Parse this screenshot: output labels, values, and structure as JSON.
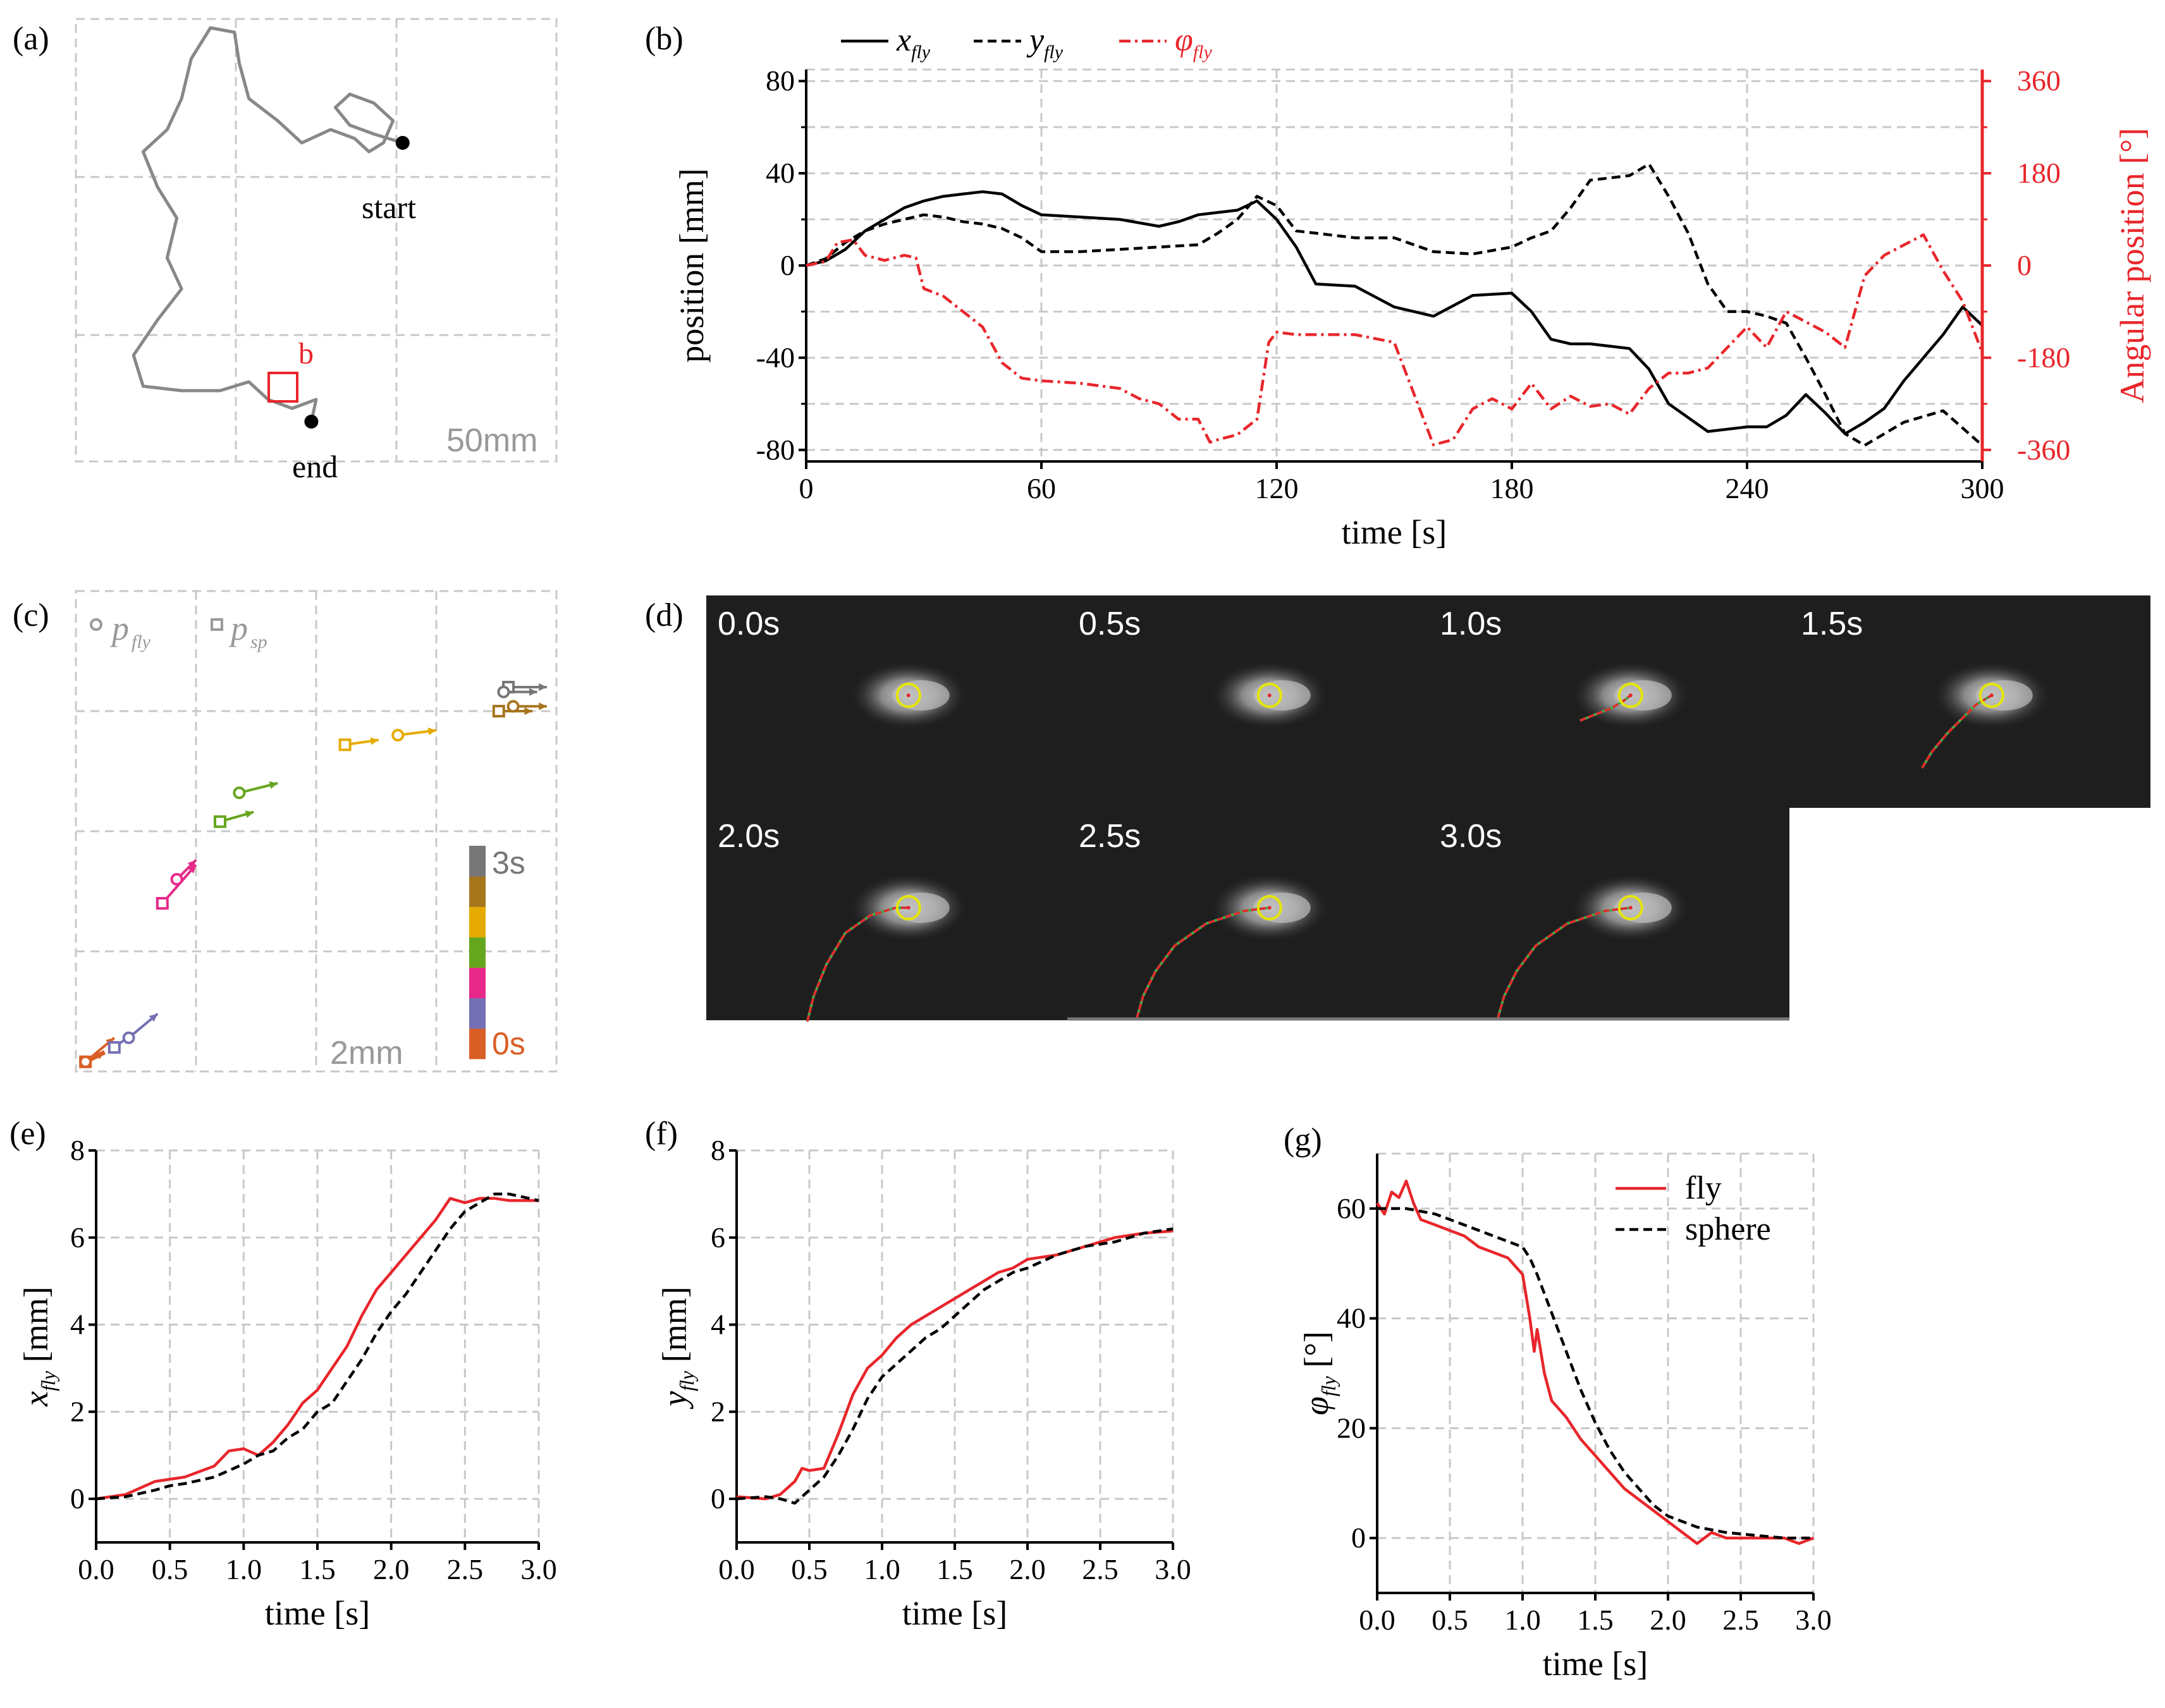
{
  "colors": {
    "black": "#000000",
    "red": "#e8262b",
    "grey": "#888888",
    "grid": "#c8c8c8",
    "yellow": "#e6e600",
    "dark": "#1e1e1e"
  },
  "panel_a": {
    "label": "(a)",
    "start_label": "start",
    "end_label": "end",
    "box_label": "b",
    "scale_label": "50mm",
    "path": [
      [
        0.68,
        0.28
      ],
      [
        0.62,
        0.26
      ],
      [
        0.57,
        0.24
      ],
      [
        0.54,
        0.2
      ],
      [
        0.57,
        0.17
      ],
      [
        0.62,
        0.19
      ],
      [
        0.66,
        0.23
      ],
      [
        0.64,
        0.28
      ],
      [
        0.61,
        0.3
      ],
      [
        0.58,
        0.27
      ],
      [
        0.53,
        0.25
      ],
      [
        0.47,
        0.28
      ],
      [
        0.42,
        0.23
      ],
      [
        0.36,
        0.18
      ],
      [
        0.34,
        0.1
      ],
      [
        0.33,
        0.03
      ],
      [
        0.28,
        0.02
      ],
      [
        0.24,
        0.09
      ],
      [
        0.22,
        0.18
      ],
      [
        0.19,
        0.25
      ],
      [
        0.14,
        0.3
      ],
      [
        0.17,
        0.38
      ],
      [
        0.21,
        0.45
      ],
      [
        0.19,
        0.54
      ],
      [
        0.22,
        0.61
      ],
      [
        0.17,
        0.68
      ],
      [
        0.12,
        0.76
      ],
      [
        0.14,
        0.83
      ],
      [
        0.22,
        0.84
      ],
      [
        0.3,
        0.84
      ],
      [
        0.36,
        0.82
      ],
      [
        0.4,
        0.86
      ],
      [
        0.45,
        0.88
      ],
      [
        0.5,
        0.86
      ],
      [
        0.49,
        0.91
      ]
    ],
    "start_point": [
      0.68,
      0.28
    ],
    "end_point": [
      0.49,
      0.91
    ]
  },
  "panel_b": {
    "label": "(b)",
    "chart_data": {
      "type": "line",
      "xlabel": "time [s]",
      "ylabel": "position [mm]",
      "ylabel_right": "Angular position [°]",
      "xlim": [
        0,
        300
      ],
      "ylim": [
        -85,
        85
      ],
      "ylim_right": [
        -382.5,
        382.5
      ],
      "xticks": [
        0,
        60,
        120,
        180,
        240,
        300
      ],
      "yticks": [
        -80,
        -40,
        0,
        40,
        80
      ],
      "yticks_right": [
        -360,
        -180,
        0,
        180,
        360
      ],
      "series": [
        {
          "name": "x",
          "sub": "fly",
          "style": "solid",
          "color": "#000000",
          "axis": "left",
          "x": [
            0,
            5,
            10,
            15,
            20,
            25,
            30,
            35,
            40,
            45,
            50,
            55,
            60,
            70,
            80,
            90,
            95,
            100,
            105,
            110,
            115,
            120,
            125,
            130,
            140,
            150,
            160,
            170,
            180,
            185,
            190,
            195,
            200,
            210,
            215,
            220,
            230,
            240,
            245,
            250,
            255,
            260,
            265,
            270,
            275,
            280,
            285,
            290,
            295,
            300
          ],
          "y": [
            0,
            2,
            7,
            15,
            20,
            25,
            28,
            30,
            31,
            32,
            31,
            26,
            22,
            21,
            20,
            17,
            19,
            22,
            23,
            24,
            28,
            20,
            8,
            -8,
            -9,
            -18,
            -22,
            -13,
            -12,
            -20,
            -32,
            -34,
            -34,
            -36,
            -45,
            -60,
            -72,
            -70,
            -70,
            -65,
            -56,
            -64,
            -73,
            -68,
            -62,
            -50,
            -40,
            -30,
            -18,
            -26
          ]
        },
        {
          "name": "y",
          "sub": "fly",
          "style": "dashed",
          "color": "#000000",
          "axis": "left",
          "x": [
            0,
            5,
            10,
            15,
            20,
            25,
            30,
            35,
            40,
            45,
            50,
            55,
            60,
            70,
            80,
            90,
            100,
            105,
            110,
            115,
            120,
            125,
            130,
            140,
            150,
            155,
            160,
            170,
            180,
            185,
            190,
            195,
            200,
            210,
            215,
            220,
            225,
            230,
            235,
            240,
            245,
            250,
            255,
            260,
            265,
            270,
            280,
            290,
            300
          ],
          "y": [
            0,
            3,
            10,
            15,
            18,
            20,
            22,
            21,
            19,
            18,
            16,
            12,
            6,
            6,
            7,
            8,
            9,
            14,
            20,
            30,
            26,
            15,
            14,
            12,
            12,
            9,
            6,
            5,
            8,
            12,
            15,
            25,
            37,
            39,
            44,
            30,
            14,
            -8,
            -20,
            -20,
            -22,
            -25,
            -40,
            -56,
            -73,
            -78,
            -68,
            -63,
            -78
          ]
        },
        {
          "name": "φ",
          "sub": "fly",
          "style": "dashdot",
          "color": "#e8262b",
          "axis": "right",
          "x": [
            0,
            5,
            8,
            12,
            15,
            20,
            25,
            28,
            30,
            35,
            40,
            45,
            50,
            55,
            60,
            70,
            80,
            85,
            90,
            95,
            100,
            103,
            105,
            110,
            115,
            118,
            120,
            125,
            130,
            140,
            150,
            155,
            160,
            165,
            170,
            175,
            180,
            185,
            190,
            195,
            200,
            205,
            210,
            215,
            220,
            225,
            230,
            240,
            245,
            250,
            255,
            260,
            265,
            270,
            275,
            280,
            285,
            290,
            295,
            300
          ],
          "y": [
            0,
            8,
            45,
            50,
            20,
            10,
            20,
            15,
            -45,
            -60,
            -90,
            -120,
            -190,
            -220,
            -225,
            -230,
            -240,
            -260,
            -270,
            -300,
            -300,
            -345,
            -340,
            -330,
            -300,
            -150,
            -130,
            -135,
            -135,
            -135,
            -150,
            -250,
            -350,
            -340,
            -280,
            -260,
            -280,
            -230,
            -280,
            -255,
            -275,
            -270,
            -290,
            -240,
            -210,
            -210,
            -200,
            -120,
            -160,
            -90,
            -110,
            -130,
            -160,
            -20,
            20,
            40,
            60,
            -10,
            -70,
            -170
          ]
        }
      ]
    }
  },
  "panel_c": {
    "label": "(c)",
    "legend_fly_sub": "fly",
    "legend_sp_sub": "sp",
    "legend_p": "p",
    "scale_label": "2mm",
    "colorbar_top": "3s",
    "colorbar_bottom": "0s",
    "colorbar_colors": [
      "#d95f27",
      "#7570b3",
      "#e7298a",
      "#66a61e",
      "#e6ab02",
      "#a6761d",
      "#777777"
    ],
    "arrows": [
      {
        "t": "0.0s",
        "color": "#d95f27",
        "fly": [
          0.02,
          0.98,
          0.06,
          0.96
        ],
        "sp": [
          0.02,
          0.98,
          0.08,
          0.93
        ]
      },
      {
        "t": "0.5s",
        "color": "#7570b3",
        "fly": [
          0.11,
          0.93,
          0.17,
          0.88
        ],
        "sp": [
          0.08,
          0.95,
          0.12,
          0.92
        ]
      },
      {
        "t": "1.0s",
        "color": "#e7298a",
        "fly": [
          0.21,
          0.6,
          0.25,
          0.56
        ],
        "sp": [
          0.18,
          0.65,
          0.25,
          0.57
        ]
      },
      {
        "t": "1.5s",
        "color": "#66a61e",
        "fly": [
          0.34,
          0.42,
          0.42,
          0.4
        ],
        "sp": [
          0.3,
          0.48,
          0.37,
          0.46
        ]
      },
      {
        "t": "2.0s",
        "color": "#e6ab02",
        "fly": [
          0.67,
          0.3,
          0.75,
          0.29
        ],
        "sp": [
          0.56,
          0.32,
          0.63,
          0.31
        ]
      },
      {
        "t": "2.5s",
        "color": "#a6761d",
        "fly": [
          0.91,
          0.24,
          0.98,
          0.24
        ],
        "sp": [
          0.88,
          0.25,
          0.95,
          0.25
        ]
      },
      {
        "t": "3.0s",
        "color": "#777777",
        "fly": [
          0.89,
          0.21,
          0.96,
          0.21
        ],
        "sp": [
          0.9,
          0.2,
          0.98,
          0.2
        ]
      }
    ]
  },
  "panel_d": {
    "label": "(d)",
    "frames": [
      "0.0s",
      "0.5s",
      "1.0s",
      "1.5s",
      "2.0s",
      "2.5s",
      "3.0s"
    ]
  },
  "panel_e": {
    "label": "(e)",
    "chart_data": {
      "type": "line",
      "xlabel": "time [s]",
      "ylabel_main": "x",
      "ylabel_sub": "fly",
      "ylabel_unit": " [mm]",
      "xlim": [
        0,
        3
      ],
      "ylim": [
        -1,
        8
      ],
      "xticks": [
        0,
        0.5,
        1,
        1.5,
        2,
        2.5,
        3
      ],
      "yticks": [
        0,
        2,
        4,
        6,
        8
      ],
      "series": [
        {
          "name": "fly",
          "color": "#e8262b",
          "style": "solid",
          "x": [
            0,
            0.2,
            0.4,
            0.5,
            0.6,
            0.8,
            0.9,
            1.0,
            1.1,
            1.2,
            1.3,
            1.4,
            1.5,
            1.6,
            1.7,
            1.8,
            1.9,
            2.0,
            2.1,
            2.2,
            2.3,
            2.4,
            2.5,
            2.6,
            2.7,
            2.8,
            3.0
          ],
          "y": [
            0,
            0.1,
            0.4,
            0.45,
            0.5,
            0.75,
            1.1,
            1.15,
            1.0,
            1.3,
            1.7,
            2.2,
            2.5,
            3.0,
            3.5,
            4.2,
            4.8,
            5.2,
            5.6,
            6.0,
            6.4,
            6.9,
            6.8,
            6.9,
            6.9,
            6.85,
            6.85
          ]
        },
        {
          "name": "sphere",
          "color": "#000000",
          "style": "dashed",
          "x": [
            0,
            0.2,
            0.4,
            0.5,
            0.6,
            0.8,
            1.0,
            1.1,
            1.2,
            1.3,
            1.4,
            1.5,
            1.6,
            1.7,
            1.8,
            1.9,
            2.0,
            2.1,
            2.2,
            2.3,
            2.4,
            2.5,
            2.6,
            2.7,
            2.8,
            3.0
          ],
          "y": [
            0,
            0.05,
            0.2,
            0.3,
            0.35,
            0.5,
            0.8,
            1.0,
            1.1,
            1.4,
            1.6,
            2.0,
            2.2,
            2.7,
            3.2,
            3.8,
            4.3,
            4.7,
            5.2,
            5.7,
            6.2,
            6.6,
            6.8,
            7.0,
            7.0,
            6.85
          ]
        }
      ]
    }
  },
  "panel_f": {
    "label": "(f)",
    "chart_data": {
      "type": "line",
      "xlabel": "time [s]",
      "ylabel_main": "y",
      "ylabel_sub": "fly",
      "ylabel_unit": " [mm]",
      "xlim": [
        0,
        3
      ],
      "ylim": [
        -1,
        8
      ],
      "xticks": [
        0,
        0.5,
        1,
        1.5,
        2,
        2.5,
        3
      ],
      "yticks": [
        0,
        2,
        4,
        6,
        8
      ],
      "series": [
        {
          "name": "fly",
          "color": "#e8262b",
          "style": "solid",
          "x": [
            0,
            0.2,
            0.3,
            0.4,
            0.45,
            0.5,
            0.6,
            0.7,
            0.8,
            0.9,
            1.0,
            1.1,
            1.2,
            1.3,
            1.4,
            1.5,
            1.6,
            1.7,
            1.8,
            1.9,
            2.0,
            2.2,
            2.4,
            2.6,
            2.8,
            3.0
          ],
          "y": [
            0.05,
            0.0,
            0.1,
            0.4,
            0.7,
            0.65,
            0.7,
            1.5,
            2.4,
            3.0,
            3.3,
            3.7,
            4.0,
            4.2,
            4.4,
            4.6,
            4.8,
            5.0,
            5.2,
            5.3,
            5.5,
            5.6,
            5.8,
            6.0,
            6.1,
            6.15
          ]
        },
        {
          "name": "sphere",
          "color": "#000000",
          "style": "dashed",
          "x": [
            0,
            0.2,
            0.3,
            0.4,
            0.5,
            0.6,
            0.7,
            0.8,
            0.9,
            1.0,
            1.1,
            1.2,
            1.3,
            1.4,
            1.5,
            1.6,
            1.7,
            1.8,
            1.9,
            2.0,
            2.2,
            2.4,
            2.6,
            2.8,
            3.0
          ],
          "y": [
            0,
            0.05,
            0.0,
            -0.1,
            0.2,
            0.5,
            1.0,
            1.6,
            2.3,
            2.8,
            3.1,
            3.4,
            3.7,
            3.9,
            4.2,
            4.5,
            4.8,
            5.0,
            5.2,
            5.3,
            5.6,
            5.8,
            5.9,
            6.1,
            6.2
          ]
        }
      ]
    }
  },
  "panel_g": {
    "label": "(g)",
    "chart_data": {
      "type": "line",
      "xlabel": "time [s]",
      "ylabel_main": "φ",
      "ylabel_sub": "fly",
      "ylabel_unit": " [°]",
      "xlim": [
        0,
        3
      ],
      "ylim": [
        -10,
        70
      ],
      "xticks": [
        0,
        0.5,
        1,
        1.5,
        2,
        2.5,
        3
      ],
      "yticks": [
        0,
        20,
        40,
        60
      ],
      "legend": [
        "fly",
        "sphere"
      ],
      "series": [
        {
          "name": "fly",
          "color": "#e8262b",
          "style": "solid",
          "x": [
            0,
            0.05,
            0.1,
            0.15,
            0.2,
            0.25,
            0.3,
            0.4,
            0.5,
            0.6,
            0.7,
            0.8,
            0.9,
            1.0,
            1.05,
            1.08,
            1.1,
            1.15,
            1.2,
            1.3,
            1.4,
            1.5,
            1.6,
            1.7,
            1.8,
            1.9,
            2.0,
            2.1,
            2.2,
            2.3,
            2.4,
            2.5,
            2.6,
            2.7,
            2.8,
            2.9,
            3.0
          ],
          "y": [
            61,
            59,
            63,
            62,
            65,
            61,
            58,
            57,
            56,
            55,
            53,
            52,
            51,
            48,
            40,
            34,
            38,
            30,
            25,
            22,
            18,
            15,
            12,
            9,
            7,
            5,
            3,
            1,
            -1,
            1,
            0,
            0,
            0,
            0,
            0,
            -1,
            0
          ]
        },
        {
          "name": "sphere",
          "color": "#000000",
          "style": "dashed",
          "x": [
            0,
            0.2,
            0.4,
            0.6,
            0.8,
            1.0,
            1.05,
            1.1,
            1.2,
            1.3,
            1.4,
            1.5,
            1.6,
            1.7,
            1.8,
            1.9,
            2.0,
            2.2,
            2.4,
            2.6,
            2.8,
            3.0
          ],
          "y": [
            60,
            60,
            59,
            57,
            55,
            53,
            51,
            48,
            41,
            34,
            27,
            21,
            16,
            12,
            9,
            6,
            4,
            2,
            1,
            0.5,
            0,
            0
          ]
        }
      ]
    }
  }
}
